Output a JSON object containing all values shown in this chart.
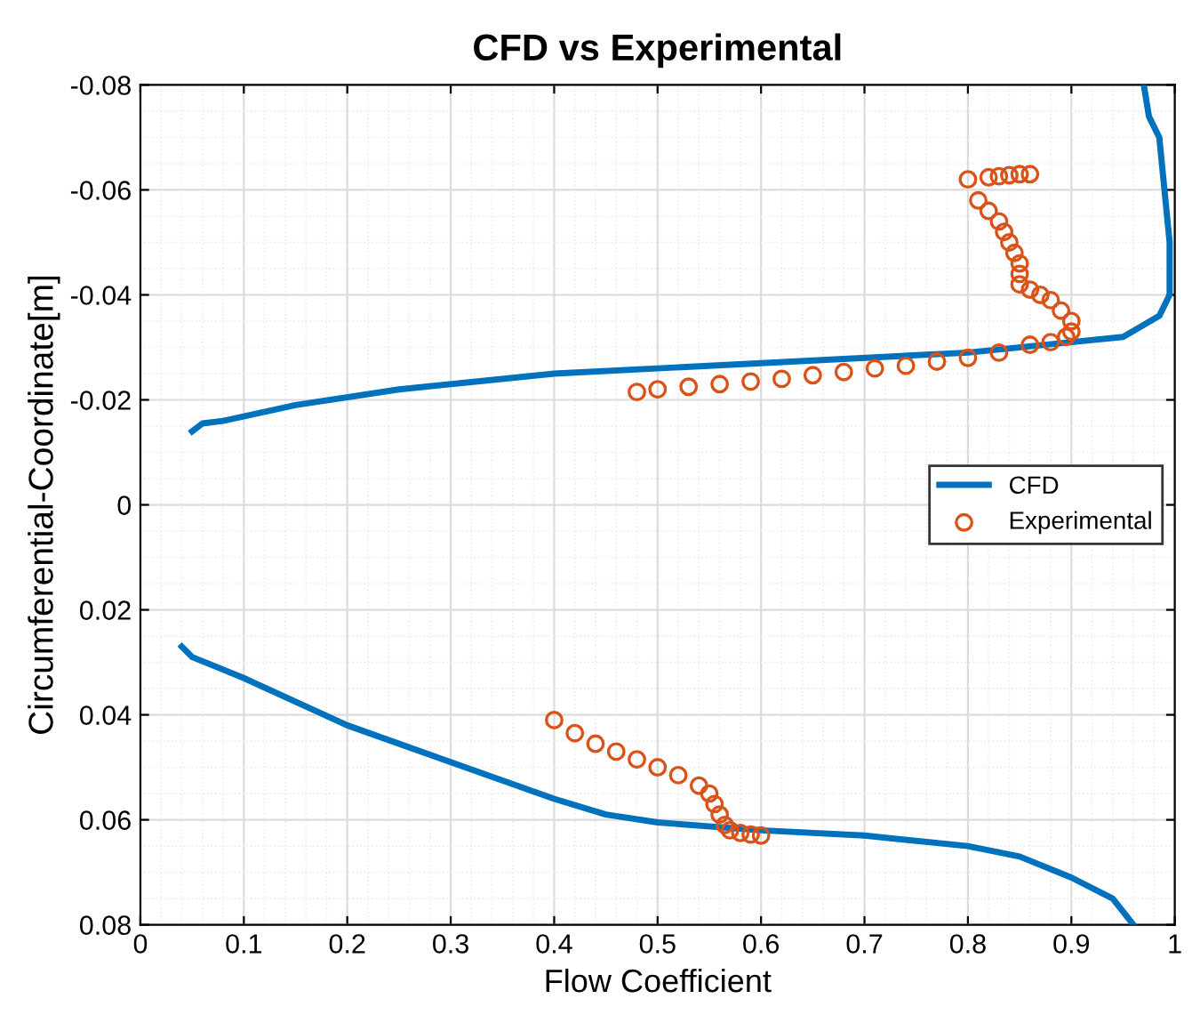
{
  "chart_data": {
    "type": "line",
    "title": "CFD vs Experimental",
    "xlabel": "Flow Coefficient",
    "ylabel": "Circumferential-Coordinate[m]",
    "xlim": [
      0,
      1
    ],
    "xticks": [
      0,
      0.1,
      0.2,
      0.3,
      0.4,
      0.5,
      0.6,
      0.7,
      0.8,
      0.9,
      1
    ],
    "ylim": [
      0.08,
      -0.08
    ],
    "yticks": [
      -0.08,
      -0.06,
      -0.04,
      -0.02,
      0,
      0.02,
      0.04,
      0.06,
      0.08
    ],
    "grid": true,
    "legend": "right",
    "series": [
      {
        "name": "CFD",
        "color": "#0072bd",
        "marker": "none",
        "line_style": "solid",
        "x": [
          0.97,
          0.975,
          0.985,
          0.99,
          0.995,
          0.995,
          0.985,
          0.95,
          0.9,
          0.8,
          0.6,
          0.4,
          0.25,
          0.15,
          0.08,
          0.06,
          0.05
        ],
        "values": [
          -0.08,
          -0.074,
          -0.07,
          -0.06,
          -0.05,
          -0.04,
          -0.036,
          -0.032,
          -0.031,
          -0.029,
          -0.027,
          -0.025,
          -0.022,
          -0.019,
          -0.016,
          -0.0155,
          -0.014
        ]
      },
      {
        "color": "#0072bd",
        "marker": "none",
        "line_style": "solid",
        "x": [
          0.04,
          0.05,
          0.1,
          0.2,
          0.3,
          0.4,
          0.45,
          0.5,
          0.6,
          0.7,
          0.8,
          0.85,
          0.9,
          0.94,
          0.96
        ],
        "values": [
          0.027,
          0.029,
          0.033,
          0.042,
          0.049,
          0.056,
          0.059,
          0.0605,
          0.062,
          0.063,
          0.065,
          0.067,
          0.071,
          0.075,
          0.08
        ]
      },
      {
        "name": "Experimental",
        "type": "scatter",
        "color": "#d95319",
        "marker": "circle",
        "x": [
          0.86,
          0.85,
          0.84,
          0.83,
          0.82,
          0.8,
          0.81,
          0.82,
          0.83,
          0.835,
          0.84,
          0.845,
          0.85,
          0.85,
          0.85,
          0.86,
          0.87,
          0.88,
          0.89,
          0.9,
          0.9,
          0.895,
          0.88,
          0.86,
          0.83,
          0.8,
          0.77,
          0.74,
          0.71,
          0.68,
          0.65,
          0.62,
          0.59,
          0.56,
          0.53,
          0.5,
          0.48,
          0.4,
          0.42,
          0.44,
          0.46,
          0.48,
          0.5,
          0.52,
          0.54,
          0.55,
          0.555,
          0.56,
          0.565,
          0.57,
          0.58,
          0.59,
          0.6
        ],
        "values": [
          -0.063,
          -0.063,
          -0.0628,
          -0.0626,
          -0.0624,
          -0.062,
          -0.058,
          -0.056,
          -0.054,
          -0.052,
          -0.05,
          -0.048,
          -0.046,
          -0.044,
          -0.042,
          -0.041,
          -0.04,
          -0.039,
          -0.037,
          -0.035,
          -0.033,
          -0.032,
          -0.031,
          -0.0305,
          -0.029,
          -0.028,
          -0.0273,
          -0.0265,
          -0.026,
          -0.0253,
          -0.0247,
          -0.024,
          -0.0235,
          -0.023,
          -0.0225,
          -0.022,
          -0.0215,
          0.041,
          0.0435,
          0.0455,
          0.047,
          0.0485,
          0.05,
          0.0515,
          0.0535,
          0.055,
          0.057,
          0.059,
          0.061,
          0.062,
          0.0625,
          0.0628,
          0.063
        ]
      }
    ]
  }
}
